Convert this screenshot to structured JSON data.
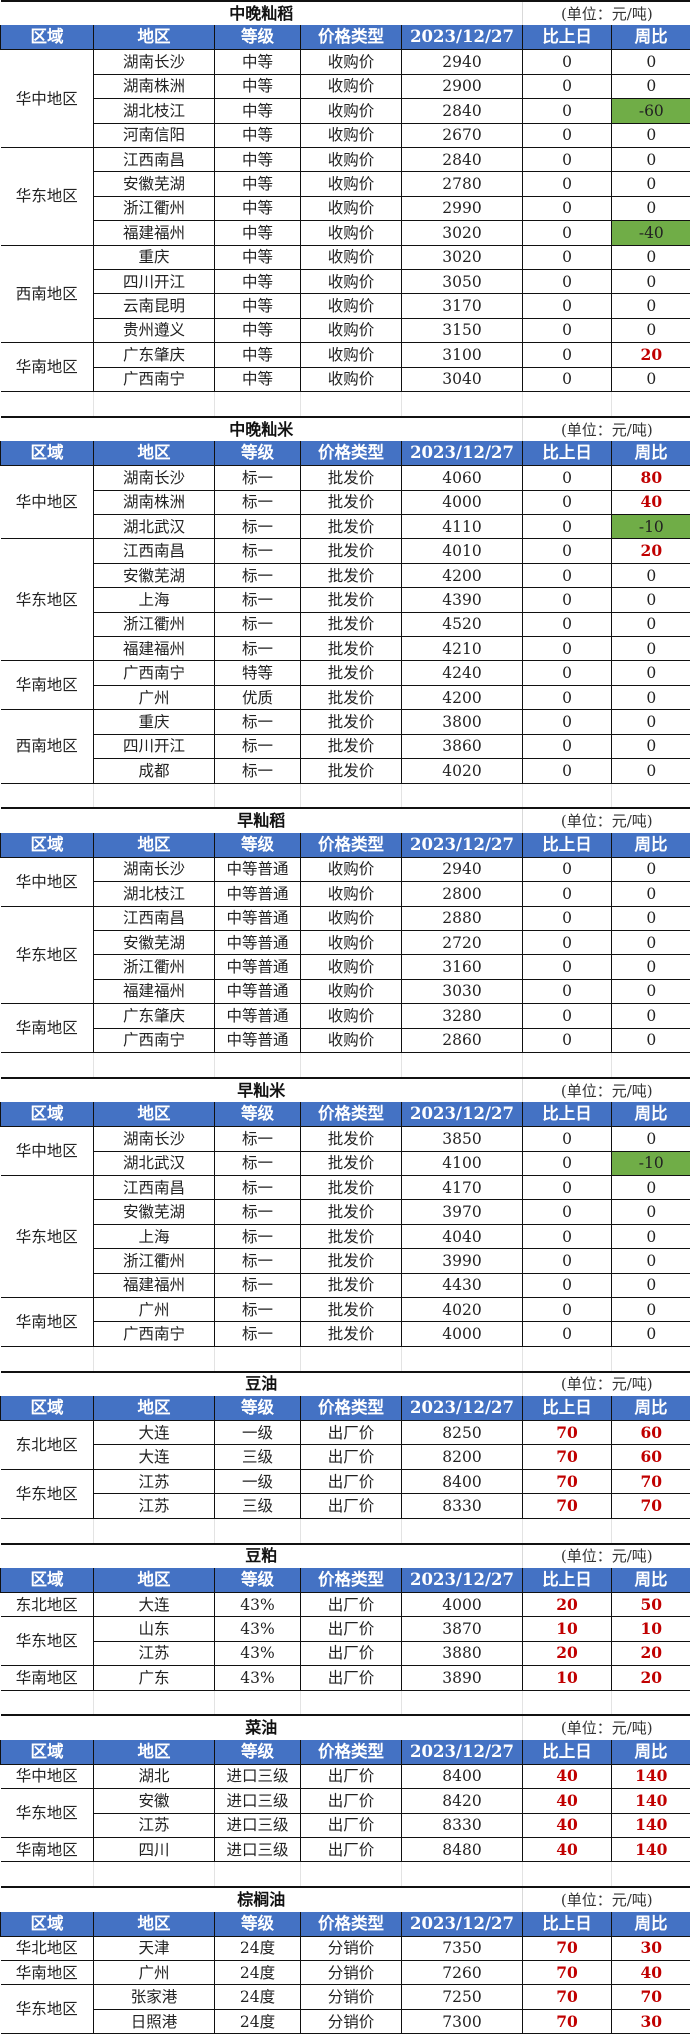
{
  "unit_label": "(单位：元/吨)",
  "columns": [
    "区域",
    "地区",
    "等级",
    "价格类型",
    "2023/12/27",
    "比上日",
    "周比"
  ],
  "colors": {
    "header_bg": "#4472C4",
    "decrease_bg": "#70AD47",
    "increase_text": "#C00000"
  },
  "sections": [
    {
      "title": "中晚籼稻",
      "groups": [
        {
          "region": "华中地区",
          "rows": [
            [
              "湖南长沙",
              "中等",
              "收购价",
              "2940",
              "0",
              "0"
            ],
            [
              "湖南株洲",
              "中等",
              "收购价",
              "2900",
              "0",
              "0"
            ],
            [
              "湖北枝江",
              "中等",
              "收购价",
              "2840",
              "0",
              "-60"
            ],
            [
              "河南信阳",
              "中等",
              "收购价",
              "2670",
              "0",
              "0"
            ]
          ]
        },
        {
          "region": "华东地区",
          "rows": [
            [
              "江西南昌",
              "中等",
              "收购价",
              "2840",
              "0",
              "0"
            ],
            [
              "安徽芜湖",
              "中等",
              "收购价",
              "2780",
              "0",
              "0"
            ],
            [
              "浙江衢州",
              "中等",
              "收购价",
              "2990",
              "0",
              "0"
            ],
            [
              "福建福州",
              "中等",
              "收购价",
              "3020",
              "0",
              "-40"
            ]
          ]
        },
        {
          "region": "西南地区",
          "rows": [
            [
              "重庆",
              "中等",
              "收购价",
              "3020",
              "0",
              "0"
            ],
            [
              "四川开江",
              "中等",
              "收购价",
              "3050",
              "0",
              "0"
            ],
            [
              "云南昆明",
              "中等",
              "收购价",
              "3170",
              "0",
              "0"
            ],
            [
              "贵州遵义",
              "中等",
              "收购价",
              "3150",
              "0",
              "0"
            ]
          ]
        },
        {
          "region": "华南地区",
          "rows": [
            [
              "广东肇庆",
              "中等",
              "收购价",
              "3100",
              "0",
              "20"
            ],
            [
              "广西南宁",
              "中等",
              "收购价",
              "3040",
              "0",
              "0"
            ]
          ]
        }
      ]
    },
    {
      "title": "中晚籼米",
      "groups": [
        {
          "region": "华中地区",
          "rows": [
            [
              "湖南长沙",
              "标一",
              "批发价",
              "4060",
              "0",
              "80"
            ],
            [
              "湖南株洲",
              "标一",
              "批发价",
              "4000",
              "0",
              "40"
            ],
            [
              "湖北武汉",
              "标一",
              "批发价",
              "4110",
              "0",
              "-10"
            ]
          ]
        },
        {
          "region": "华东地区",
          "rows": [
            [
              "江西南昌",
              "标一",
              "批发价",
              "4010",
              "0",
              "20"
            ],
            [
              "安徽芜湖",
              "标一",
              "批发价",
              "4200",
              "0",
              "0"
            ],
            [
              "上海",
              "标一",
              "批发价",
              "4390",
              "0",
              "0"
            ],
            [
              "浙江衢州",
              "标一",
              "批发价",
              "4520",
              "0",
              "0"
            ],
            [
              "福建福州",
              "标一",
              "批发价",
              "4210",
              "0",
              "0"
            ]
          ]
        },
        {
          "region": "华南地区",
          "rows": [
            [
              "广西南宁",
              "特等",
              "批发价",
              "4240",
              "0",
              "0"
            ],
            [
              "广州",
              "优质",
              "批发价",
              "4200",
              "0",
              "0"
            ]
          ]
        },
        {
          "region": "西南地区",
          "rows": [
            [
              "重庆",
              "标一",
              "批发价",
              "3800",
              "0",
              "0"
            ],
            [
              "四川开江",
              "标一",
              "批发价",
              "3860",
              "0",
              "0"
            ],
            [
              "成都",
              "标一",
              "批发价",
              "4020",
              "0",
              "0"
            ]
          ]
        }
      ]
    },
    {
      "title": "早籼稻",
      "groups": [
        {
          "region": "华中地区",
          "rows": [
            [
              "湖南长沙",
              "中等普通",
              "收购价",
              "2940",
              "0",
              "0"
            ],
            [
              "湖北枝江",
              "中等普通",
              "收购价",
              "2800",
              "0",
              "0"
            ]
          ]
        },
        {
          "region": "华东地区",
          "rows": [
            [
              "江西南昌",
              "中等普通",
              "收购价",
              "2880",
              "0",
              "0"
            ],
            [
              "安徽芜湖",
              "中等普通",
              "收购价",
              "2720",
              "0",
              "0"
            ],
            [
              "浙江衢州",
              "中等普通",
              "收购价",
              "3160",
              "0",
              "0"
            ],
            [
              "福建福州",
              "中等普通",
              "收购价",
              "3030",
              "0",
              "0"
            ]
          ]
        },
        {
          "region": "华南地区",
          "rows": [
            [
              "广东肇庆",
              "中等普通",
              "收购价",
              "3280",
              "0",
              "0"
            ],
            [
              "广西南宁",
              "中等普通",
              "收购价",
              "2860",
              "0",
              "0"
            ]
          ]
        }
      ]
    },
    {
      "title": "早籼米",
      "groups": [
        {
          "region": "华中地区",
          "rows": [
            [
              "湖南长沙",
              "标一",
              "批发价",
              "3850",
              "0",
              "0"
            ],
            [
              "湖北武汉",
              "标一",
              "批发价",
              "4100",
              "0",
              "-10"
            ]
          ]
        },
        {
          "region": "华东地区",
          "rows": [
            [
              "江西南昌",
              "标一",
              "批发价",
              "4170",
              "0",
              "0"
            ],
            [
              "安徽芜湖",
              "标一",
              "批发价",
              "3970",
              "0",
              "0"
            ],
            [
              "上海",
              "标一",
              "批发价",
              "4040",
              "0",
              "0"
            ],
            [
              "浙江衢州",
              "标一",
              "批发价",
              "3990",
              "0",
              "0"
            ],
            [
              "福建福州",
              "标一",
              "批发价",
              "4430",
              "0",
              "0"
            ]
          ]
        },
        {
          "region": "华南地区",
          "rows": [
            [
              "广州",
              "标一",
              "批发价",
              "4020",
              "0",
              "0"
            ],
            [
              "广西南宁",
              "标一",
              "批发价",
              "4000",
              "0",
              "0"
            ]
          ]
        }
      ]
    },
    {
      "title": "豆油",
      "groups": [
        {
          "region": "东北地区",
          "rows": [
            [
              "大连",
              "一级",
              "出厂价",
              "8250",
              "70",
              "60"
            ],
            [
              "大连",
              "三级",
              "出厂价",
              "8200",
              "70",
              "60"
            ]
          ]
        },
        {
          "region": "华东地区",
          "rows": [
            [
              "江苏",
              "一级",
              "出厂价",
              "8400",
              "70",
              "70"
            ],
            [
              "江苏",
              "三级",
              "出厂价",
              "8330",
              "70",
              "70"
            ]
          ]
        }
      ]
    },
    {
      "title": "豆粕",
      "groups": [
        {
          "region": "东北地区",
          "rows": [
            [
              "大连",
              "43%",
              "出厂价",
              "4000",
              "20",
              "50"
            ]
          ]
        },
        {
          "region": "华东地区",
          "rows": [
            [
              "山东",
              "43%",
              "出厂价",
              "3870",
              "10",
              "10"
            ],
            [
              "江苏",
              "43%",
              "出厂价",
              "3880",
              "20",
              "20"
            ]
          ]
        },
        {
          "region": "华南地区",
          "rows": [
            [
              "广东",
              "43%",
              "出厂价",
              "3890",
              "10",
              "20"
            ]
          ]
        }
      ]
    },
    {
      "title": "菜油",
      "groups": [
        {
          "region": "华中地区",
          "rows": [
            [
              "湖北",
              "进口三级",
              "出厂价",
              "8400",
              "40",
              "140"
            ]
          ]
        },
        {
          "region": "华东地区",
          "rows": [
            [
              "安徽",
              "进口三级",
              "出厂价",
              "8420",
              "40",
              "140"
            ],
            [
              "江苏",
              "进口三级",
              "出厂价",
              "8330",
              "40",
              "140"
            ]
          ]
        },
        {
          "region": "华南地区",
          "rows": [
            [
              "四川",
              "进口三级",
              "出厂价",
              "8480",
              "40",
              "140"
            ]
          ]
        }
      ]
    },
    {
      "title": "棕榈油",
      "groups": [
        {
          "region": "华北地区",
          "rows": [
            [
              "天津",
              "24度",
              "分销价",
              "7350",
              "70",
              "30"
            ]
          ]
        },
        {
          "region": "华南地区",
          "rows": [
            [
              "广州",
              "24度",
              "分销价",
              "7260",
              "70",
              "40"
            ]
          ]
        },
        {
          "region": "华东地区",
          "rows": [
            [
              "张家港",
              "24度",
              "分销价",
              "7250",
              "70",
              "70"
            ],
            [
              "日照港",
              "24度",
              "分销价",
              "7300",
              "70",
              "30"
            ]
          ]
        }
      ]
    }
  ]
}
